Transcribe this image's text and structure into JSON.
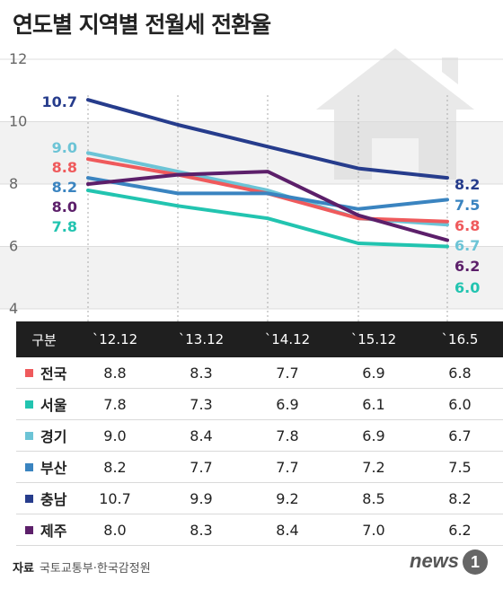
{
  "title": "연도별 지역별 전월세 전환율",
  "colors": {
    "전국": "#ef5a5c",
    "서울": "#22c4b0",
    "경기": "#6cc4d6",
    "부산": "#3a84c0",
    "충남": "#263c8c",
    "제주": "#5c1f6a"
  },
  "chart_data": {
    "type": "line",
    "x": [
      "`12.12",
      "`13.12",
      "`14.12",
      "`15.12",
      "`16.5"
    ],
    "ylim": [
      4,
      12
    ],
    "yticks": [
      "4",
      "6",
      "8",
      "10",
      "12"
    ],
    "grid": true,
    "series": [
      {
        "name": "충남",
        "values": [
          10.7,
          9.9,
          9.2,
          8.5,
          8.2
        ],
        "start_label": "10.7",
        "end_label": "8.2"
      },
      {
        "name": "경기",
        "values": [
          9.0,
          8.4,
          7.8,
          6.9,
          6.7
        ],
        "start_label": "9.0",
        "end_label": "6.7"
      },
      {
        "name": "전국",
        "values": [
          8.8,
          8.3,
          7.7,
          6.9,
          6.8
        ],
        "start_label": "8.8",
        "end_label": "6.8"
      },
      {
        "name": "부산",
        "values": [
          8.2,
          7.7,
          7.7,
          7.2,
          7.5
        ],
        "start_label": "8.2",
        "end_label": "7.5"
      },
      {
        "name": "제주",
        "values": [
          8.0,
          8.3,
          8.4,
          7.0,
          6.2
        ],
        "start_label": "8.0",
        "end_label": "6.2"
      },
      {
        "name": "서울",
        "values": [
          7.8,
          7.3,
          6.9,
          6.1,
          6.0
        ],
        "start_label": "7.8",
        "end_label": "6.0"
      }
    ]
  },
  "table": {
    "header_label": "구분",
    "years": [
      "`12.12",
      "`13.12",
      "`14.12",
      "`15.12",
      "`16.5"
    ],
    "rows": [
      {
        "region": "전국",
        "color": "#ef5a5c",
        "values": [
          "8.8",
          "8.3",
          "7.7",
          "6.9",
          "6.8"
        ]
      },
      {
        "region": "서울",
        "color": "#22c4b0",
        "values": [
          "7.8",
          "7.3",
          "6.9",
          "6.1",
          "6.0"
        ]
      },
      {
        "region": "경기",
        "color": "#6cc4d6",
        "values": [
          "9.0",
          "8.4",
          "7.8",
          "6.9",
          "6.7"
        ]
      },
      {
        "region": "부산",
        "color": "#3a84c0",
        "values": [
          "8.2",
          "7.7",
          "7.7",
          "7.2",
          "7.5"
        ]
      },
      {
        "region": "충남",
        "color": "#263c8c",
        "values": [
          "10.7",
          "9.9",
          "9.2",
          "8.5",
          "8.2"
        ]
      },
      {
        "region": "제주",
        "color": "#5c1f6a",
        "values": [
          "8.0",
          "8.3",
          "8.4",
          "7.0",
          "6.2"
        ]
      }
    ]
  },
  "source": {
    "label": "자료",
    "text": "국토교통부·한국감정원"
  },
  "logo": {
    "text": "news",
    "mark": "1"
  },
  "icons": {
    "background": "house-icon"
  }
}
